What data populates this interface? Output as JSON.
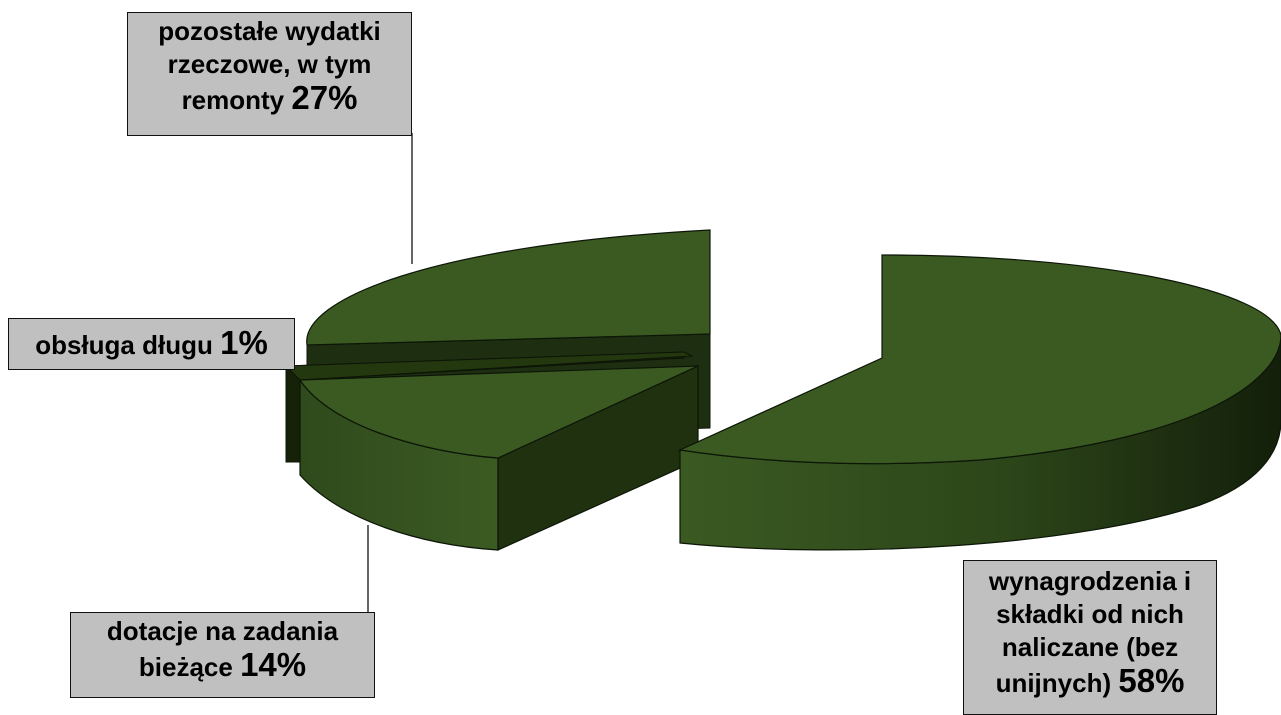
{
  "chart_data": {
    "type": "pie",
    "style": "3d-exploded",
    "slices": [
      {
        "label": "wynagrodzenia i składki od nich naliczane (bez unijnych)",
        "value": 58,
        "pct_text": "58%"
      },
      {
        "label": "dotacje na zadania bieżące",
        "value": 14,
        "pct_text": "14%"
      },
      {
        "label": "obsługa długu",
        "value": 1,
        "pct_text": "1%"
      },
      {
        "label": "pozostałe wydatki rzeczowe, w tym remonty",
        "value": 27,
        "pct_text": "27%"
      }
    ],
    "colors": {
      "top": "#3a5a22",
      "side_light": "#355020",
      "side_dark": "#16230c",
      "outline": "#0d1507",
      "label_bg": "#c0c0c0"
    }
  },
  "labels": {
    "l58_lines": [
      "wynagrodzenia i",
      "składki od nich",
      "naliczane (bez",
      "unijnych)"
    ],
    "l14_lines": [
      "dotacje na zadania",
      "bieżące"
    ],
    "l1_lines": [
      "obsługa długu"
    ],
    "l27_lines": [
      "pozostałe wydatki",
      "rzeczowe, w tym",
      "remonty"
    ]
  }
}
